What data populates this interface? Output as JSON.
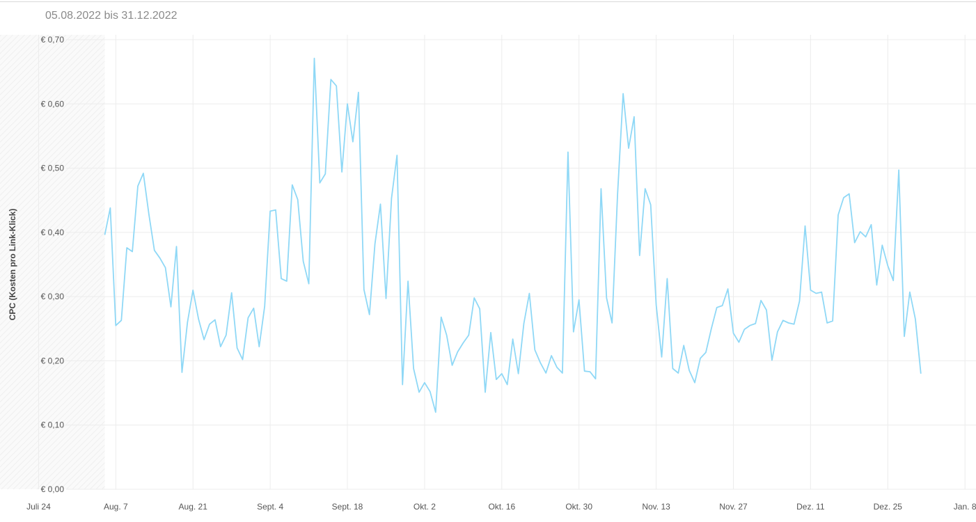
{
  "header": {
    "date_range": "05.08.2022 bis 31.12.2022"
  },
  "chart_data": {
    "type": "line",
    "title": "05.08.2022 bis 31.12.2022",
    "ylabel": "CPC (Kosten pro Link-Klick)",
    "xlabel": "",
    "ylim": [
      0,
      0.7
    ],
    "xlim": [
      "2022-07-17",
      "2023-01-10"
    ],
    "grid": true,
    "line_color": "#8fd8f6",
    "no_data_shade_until": "2022-08-05",
    "y_ticks": [
      {
        "value": 0.0,
        "label": "€ 0,00"
      },
      {
        "value": 0.1,
        "label": "€ 0,10"
      },
      {
        "value": 0.2,
        "label": "€ 0,20"
      },
      {
        "value": 0.3,
        "label": "€ 0,30"
      },
      {
        "value": 0.4,
        "label": "€ 0,40"
      },
      {
        "value": 0.5,
        "label": "€ 0,50"
      },
      {
        "value": 0.6,
        "label": "€ 0,60"
      },
      {
        "value": 0.7,
        "label": "€ 0,70"
      }
    ],
    "x_ticks": [
      {
        "date": "2022-07-24",
        "label": "Juli 24"
      },
      {
        "date": "2022-08-07",
        "label": "Aug. 7"
      },
      {
        "date": "2022-08-21",
        "label": "Aug. 21"
      },
      {
        "date": "2022-09-04",
        "label": "Sept. 4"
      },
      {
        "date": "2022-09-18",
        "label": "Sept. 18"
      },
      {
        "date": "2022-10-02",
        "label": "Okt. 2"
      },
      {
        "date": "2022-10-16",
        "label": "Okt. 16"
      },
      {
        "date": "2022-10-30",
        "label": "Okt. 30"
      },
      {
        "date": "2022-11-13",
        "label": "Nov. 13"
      },
      {
        "date": "2022-11-27",
        "label": "Nov. 27"
      },
      {
        "date": "2022-12-11",
        "label": "Dez. 11"
      },
      {
        "date": "2022-12-25",
        "label": "Dez. 25"
      },
      {
        "date": "2023-01-08",
        "label": "Jan. 8"
      }
    ],
    "series": [
      {
        "start_date": "2022-08-05",
        "values": [
          0.396,
          0.438,
          0.255,
          0.263,
          0.376,
          0.37,
          0.472,
          0.492,
          0.428,
          0.372,
          0.36,
          0.345,
          0.284,
          0.378,
          0.182,
          0.26,
          0.31,
          0.265,
          0.233,
          0.257,
          0.264,
          0.222,
          0.24,
          0.306,
          0.22,
          0.202,
          0.267,
          0.282,
          0.222,
          0.285,
          0.433,
          0.435,
          0.328,
          0.324,
          0.474,
          0.451,
          0.355,
          0.32,
          0.671,
          0.477,
          0.491,
          0.638,
          0.628,
          0.494,
          0.6,
          0.541,
          0.618,
          0.311,
          0.272,
          0.382,
          0.444,
          0.297,
          0.453,
          0.52,
          0.163,
          0.324,
          0.188,
          0.151,
          0.166,
          0.152,
          0.12,
          0.268,
          0.24,
          0.193,
          0.214,
          0.228,
          0.24,
          0.298,
          0.281,
          0.151,
          0.244,
          0.171,
          0.18,
          0.163,
          0.234,
          0.18,
          0.258,
          0.305,
          0.217,
          0.197,
          0.181,
          0.208,
          0.19,
          0.181,
          0.525,
          0.245,
          0.295,
          0.184,
          0.183,
          0.172,
          0.468,
          0.298,
          0.259,
          0.459,
          0.616,
          0.531,
          0.58,
          0.364,
          0.468,
          0.443,
          0.287,
          0.206,
          0.328,
          0.188,
          0.181,
          0.224,
          0.185,
          0.166,
          0.204,
          0.213,
          0.25,
          0.283,
          0.286,
          0.312,
          0.243,
          0.229,
          0.249,
          0.255,
          0.258,
          0.294,
          0.279,
          0.201,
          0.245,
          0.263,
          0.259,
          0.257,
          0.293,
          0.41,
          0.31,
          0.305,
          0.307,
          0.259,
          0.262,
          0.427,
          0.454,
          0.46,
          0.384,
          0.401,
          0.393,
          0.412,
          0.318,
          0.38,
          0.348,
          0.325,
          0.497,
          0.238,
          0.307,
          0.265,
          0.18
        ]
      }
    ]
  }
}
